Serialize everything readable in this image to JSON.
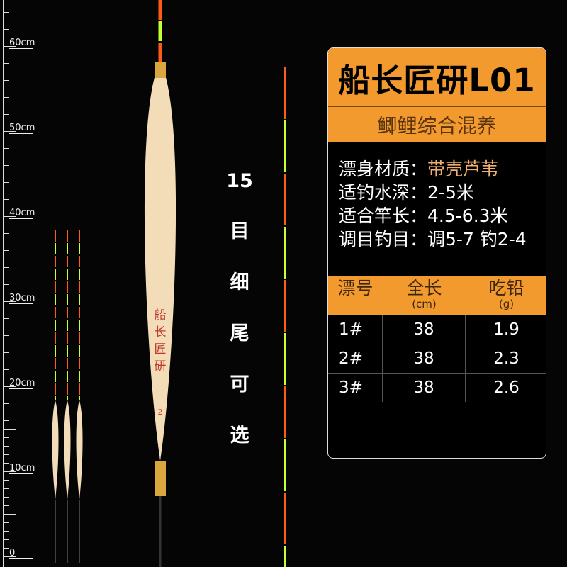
{
  "ruler": {
    "unit": "cm",
    "labels": [
      "0",
      "10",
      "20",
      "30",
      "40",
      "50",
      "60"
    ]
  },
  "side_text": [
    "15",
    "目",
    "细",
    "尾",
    "可",
    "选"
  ],
  "float_marking": [
    "船",
    "长",
    "匠",
    "研",
    "2"
  ],
  "panel": {
    "title": "船长匠研L01",
    "subtitle": "鲫鲤综合混养",
    "specs": [
      {
        "label": "漂身材质：",
        "value": "带壳芦苇"
      },
      {
        "label": "适钓水深：",
        "value": "2-5米"
      },
      {
        "label": "适合竿长：",
        "value": "4.5-6.3米"
      },
      {
        "label": "调目钓目：",
        "value": "调5-7 钓2-4"
      }
    ],
    "table": {
      "headers": [
        {
          "label": "漂号",
          "unit": ""
        },
        {
          "label": "全长",
          "unit": "(cm)"
        },
        {
          "label": "吃铅",
          "unit": "(g)"
        }
      ],
      "rows": [
        [
          "1#",
          "38",
          "1.9"
        ],
        [
          "2#",
          "38",
          "2.3"
        ],
        [
          "3#",
          "38",
          "2.6"
        ]
      ]
    }
  },
  "colors": {
    "accent": "#f29a2e",
    "tip_orange": "#ff5a1a",
    "tip_green": "#c8ff30",
    "float_body": "#f3dcb8"
  }
}
